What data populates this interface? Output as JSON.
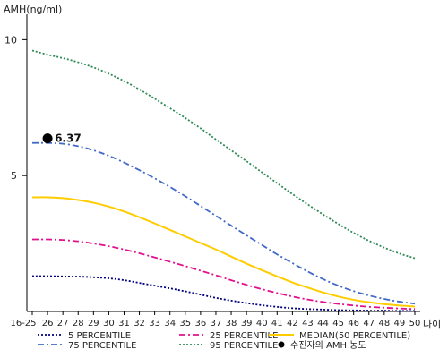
{
  "chart_data": {
    "type": "line",
    "ylabel": "AMH(ng/ml)",
    "xunit": "나이",
    "ylim": [
      0,
      11
    ],
    "yticks": [
      5,
      10
    ],
    "categories": [
      "16-25",
      "26",
      "27",
      "28",
      "29",
      "30",
      "31",
      "32",
      "33",
      "34",
      "35",
      "36",
      "37",
      "38",
      "39",
      "40",
      "41",
      "42",
      "43",
      "44",
      "45",
      "46",
      "47",
      "48",
      "49",
      "50"
    ],
    "series": [
      {
        "name": "5 PERCENTILE",
        "color": "#000080",
        "dash": "2,2",
        "values": [
          1.3,
          1.3,
          1.29,
          1.28,
          1.26,
          1.22,
          1.15,
          1.05,
          0.95,
          0.85,
          0.74,
          0.62,
          0.5,
          0.4,
          0.31,
          0.23,
          0.17,
          0.12,
          0.09,
          0.07,
          0.05,
          0.04,
          0.03,
          0.03,
          0.02,
          0.02
        ]
      },
      {
        "name": "25 PERCENTILE",
        "color": "#e0108f",
        "dash": "7,3,2,3",
        "values": [
          2.65,
          2.65,
          2.63,
          2.58,
          2.5,
          2.4,
          2.28,
          2.14,
          1.99,
          1.83,
          1.67,
          1.5,
          1.33,
          1.15,
          0.98,
          0.82,
          0.68,
          0.55,
          0.44,
          0.35,
          0.28,
          0.22,
          0.17,
          0.14,
          0.11,
          0.09
        ]
      },
      {
        "name": "MEDIAN(50 PERCENTILE)",
        "color": "#ffcc00",
        "dash": "",
        "values": [
          4.2,
          4.2,
          4.17,
          4.1,
          4.0,
          3.86,
          3.68,
          3.47,
          3.24,
          3.0,
          2.76,
          2.52,
          2.28,
          2.02,
          1.76,
          1.52,
          1.29,
          1.07,
          0.88,
          0.7,
          0.55,
          0.43,
          0.34,
          0.27,
          0.22,
          0.18
        ]
      },
      {
        "name": "75 PERCENTILE",
        "color": "#4169c8",
        "dash": "7,3,2,3",
        "values": [
          6.2,
          6.2,
          6.17,
          6.08,
          5.93,
          5.73,
          5.48,
          5.2,
          4.9,
          4.58,
          4.24,
          3.88,
          3.52,
          3.16,
          2.8,
          2.45,
          2.1,
          1.78,
          1.47,
          1.19,
          0.95,
          0.75,
          0.59,
          0.46,
          0.36,
          0.29
        ]
      },
      {
        "name": "95 PERCENTILE",
        "color": "#2e8b57",
        "dash": "2,2",
        "values": [
          9.6,
          9.45,
          9.32,
          9.17,
          8.98,
          8.75,
          8.48,
          8.17,
          7.83,
          7.48,
          7.12,
          6.74,
          6.33,
          5.93,
          5.53,
          5.12,
          4.72,
          4.32,
          3.94,
          3.57,
          3.22,
          2.89,
          2.6,
          2.35,
          2.13,
          1.96
        ]
      }
    ],
    "patient": {
      "label": "수진자의 AMH 농도",
      "category": "26",
      "value": 6.37,
      "value_label": "6.37"
    },
    "legend": {
      "position": "bottom",
      "rows": [
        [
          "5 PERCENTILE",
          "25 PERCENTILE",
          "MEDIAN(50 PERCENTILE)"
        ],
        [
          "75 PERCENTILE",
          "95 PERCENTILE",
          "수진자의 AMH 농도"
        ]
      ]
    },
    "grid": false
  }
}
